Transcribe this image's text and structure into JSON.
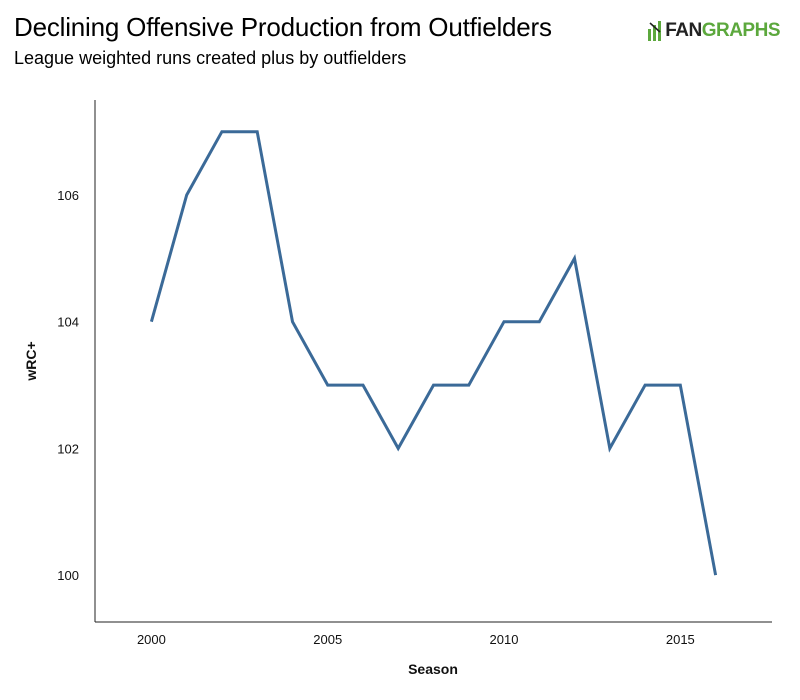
{
  "header": {
    "title": "Declining Offensive Production from Outfielders",
    "subtitle": "League weighted runs created plus by outfielders"
  },
  "logo": {
    "part1": "FAN",
    "part2": "GRAPHS",
    "icon": "batter-icon",
    "colors": {
      "dark": "#222222",
      "green": "#5ca83d"
    }
  },
  "chart_data": {
    "type": "line",
    "title": "Declining Offensive Production from Outfielders",
    "subtitle": "League weighted runs created plus by outfielders",
    "xlabel": "Season",
    "ylabel": "wRC+",
    "x": [
      2000,
      2001,
      2002,
      2003,
      2004,
      2005,
      2006,
      2007,
      2008,
      2009,
      2010,
      2011,
      2012,
      2013,
      2014,
      2015,
      2016
    ],
    "series": [
      {
        "values": [
          104,
          106,
          107,
          107,
          104,
          103,
          103,
          102,
          103,
          103,
          104,
          104,
          105,
          102,
          103,
          103,
          100
        ],
        "color": "#3b6a98"
      }
    ],
    "xticks": [
      2000,
      2005,
      2010,
      2015
    ],
    "yticks": [
      100,
      102,
      104,
      106
    ],
    "xlim": [
      1998.4,
      2017.6
    ],
    "ylim": [
      99.26,
      107.5
    ],
    "grid": false,
    "legend": "none"
  }
}
